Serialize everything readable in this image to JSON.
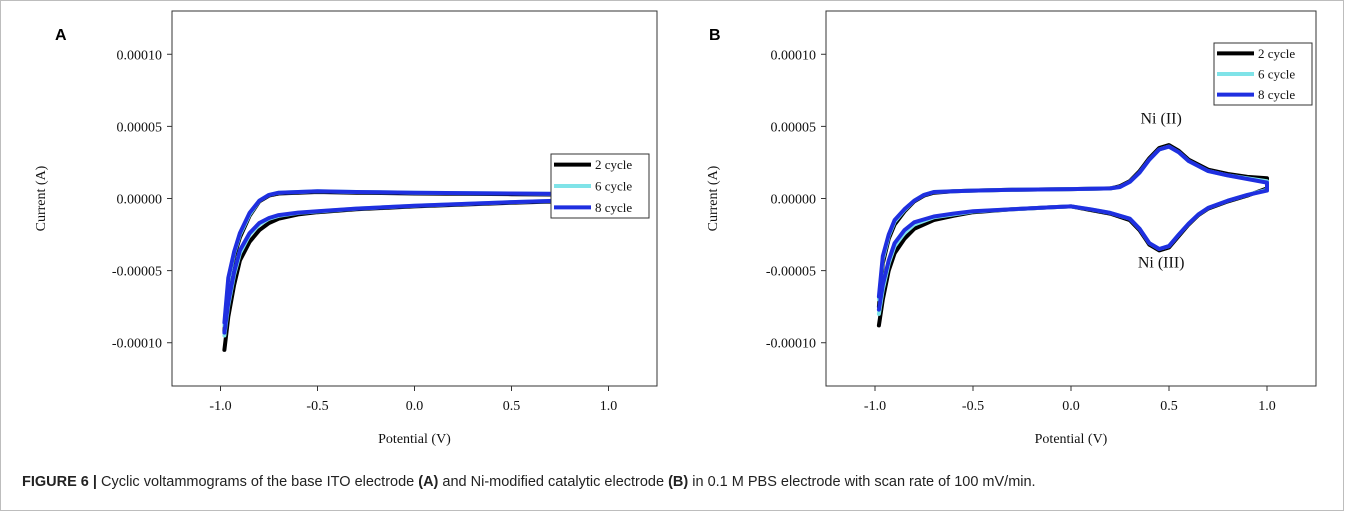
{
  "caption": {
    "prefix": "FIGURE 6 |",
    "t1": " Cyclic voltammograms of the base ITO electrode ",
    "a": "(A)",
    "t2": " and Ni-modified catalytic electrode ",
    "b": "(B)",
    "t3": " in 0.1 M PBS electrode with scan rate of 100 mV/min."
  },
  "chart_data": [
    {
      "panel": "A",
      "type": "line",
      "xlabel": "Potential (V)",
      "ylabel": "Current (A)",
      "xlim": [
        -1.25,
        1.25
      ],
      "ylim": [
        -0.00013,
        0.00013
      ],
      "xticks": [
        -1.0,
        -0.5,
        0.0,
        0.5,
        1.0
      ],
      "xtick_labels": [
        "-1.0",
        "-0.5",
        "0.0",
        "0.5",
        "1.0"
      ],
      "yticks": [
        0.0001,
        5e-05,
        0.0,
        -5e-05,
        -0.0001
      ],
      "ytick_labels": [
        "0.00010",
        "0.00005",
        "0.00000",
        "-0.00005",
        "-0.00010"
      ],
      "grid": false,
      "legend": "top-right",
      "series": [
        {
          "name": "2 cycle",
          "color": "#000000",
          "x": [
            -0.98,
            -0.96,
            -0.93,
            -0.9,
            -0.85,
            -0.8,
            -0.75,
            -0.7,
            -0.6,
            -0.5,
            -0.3,
            0.0,
            0.5,
            1.0,
            1.0,
            0.5,
            0.0,
            -0.3,
            -0.5,
            -0.6,
            -0.7,
            -0.75,
            -0.8,
            -0.85,
            -0.9,
            -0.93,
            -0.96,
            -0.98
          ],
          "y": [
            -0.000105,
            -8.2e-05,
            -6e-05,
            -4.3e-05,
            -3e-05,
            -2.2e-05,
            -1.7e-05,
            -1.4e-05,
            -1.1e-05,
            -9.5e-06,
            -7.5e-06,
            -5.5e-06,
            -3e-06,
            -1e-06,
            2.5e-06,
            3e-06,
            3.5e-06,
            4e-06,
            4.5e-06,
            4e-06,
            3.5e-06,
            2e-06,
            -2e-06,
            -1.2e-05,
            -2.7e-05,
            -4e-05,
            -6e-05,
            -9.2e-05
          ]
        },
        {
          "name": "6 cycle",
          "color": "#7fe3e8",
          "x": [
            -0.98,
            -0.96,
            -0.93,
            -0.9,
            -0.85,
            -0.8,
            -0.75,
            -0.7,
            -0.6,
            -0.5,
            -0.3,
            0.0,
            0.5,
            1.0,
            1.0,
            0.5,
            0.0,
            -0.3,
            -0.5,
            -0.6,
            -0.7,
            -0.75,
            -0.8,
            -0.85,
            -0.9,
            -0.93,
            -0.96,
            -0.98
          ],
          "y": [
            -9.5e-05,
            -7.4e-05,
            -5.3e-05,
            -3.8e-05,
            -2.5e-05,
            -1.8e-05,
            -1.4e-05,
            -1.2e-05,
            -1e-05,
            -9e-06,
            -7e-06,
            -5e-06,
            -2.5e-06,
            -5e-07,
            3e-06,
            3.5e-06,
            4e-06,
            4.5e-06,
            5e-06,
            4.5e-06,
            4e-06,
            2.5e-06,
            -1.5e-06,
            -1.1e-05,
            -2.5e-05,
            -3.8e-05,
            -5.7e-05,
            -8.8e-05
          ]
        },
        {
          "name": "8 cycle",
          "color": "#1f2fe0",
          "x": [
            -0.98,
            -0.96,
            -0.93,
            -0.9,
            -0.85,
            -0.8,
            -0.75,
            -0.7,
            -0.6,
            -0.5,
            -0.3,
            0.0,
            0.5,
            1.0,
            1.0,
            0.5,
            0.0,
            -0.3,
            -0.5,
            -0.6,
            -0.7,
            -0.75,
            -0.8,
            -0.85,
            -0.9,
            -0.93,
            -0.96,
            -0.98
          ],
          "y": [
            -9.3e-05,
            -7.2e-05,
            -5.1e-05,
            -3.6e-05,
            -2.4e-05,
            -1.7e-05,
            -1.35e-05,
            -1.15e-05,
            -9.8e-06,
            -8.8e-06,
            -7e-06,
            -5e-06,
            -2.5e-06,
            -5e-07,
            3e-06,
            3.5e-06,
            4e-06,
            4.5e-06,
            5e-06,
            4.5e-06,
            4e-06,
            2.5e-06,
            -1.5e-06,
            -1e-05,
            -2.4e-05,
            -3.7e-05,
            -5.5e-05,
            -8.6e-05
          ]
        }
      ],
      "annotations": []
    },
    {
      "panel": "B",
      "type": "line",
      "xlabel": "Potential (V)",
      "ylabel": "Current (A)",
      "xlim": [
        -1.25,
        1.25
      ],
      "ylim": [
        -0.00013,
        0.00013
      ],
      "xticks": [
        -1.0,
        -0.5,
        0.0,
        0.5,
        1.0
      ],
      "xtick_labels": [
        "-1.0",
        "-0.5",
        "0.0",
        "0.5",
        "1.0"
      ],
      "yticks": [
        0.0001,
        5e-05,
        0.0,
        -5e-05,
        -0.0001
      ],
      "ytick_labels": [
        "0.00010",
        "0.00005",
        "0.00000",
        "-0.00005",
        "-0.00010"
      ],
      "grid": false,
      "legend": "top-right",
      "series": [
        {
          "name": "2 cycle",
          "color": "#000000",
          "x": [
            -0.98,
            -0.96,
            -0.93,
            -0.9,
            -0.85,
            -0.8,
            -0.7,
            -0.6,
            -0.5,
            -0.3,
            -0.1,
            0.0,
            0.1,
            0.2,
            0.3,
            0.35,
            0.4,
            0.45,
            0.5,
            0.55,
            0.6,
            0.65,
            0.7,
            0.8,
            0.9,
            1.0,
            1.0,
            0.9,
            0.8,
            0.7,
            0.6,
            0.55,
            0.5,
            0.45,
            0.4,
            0.35,
            0.3,
            0.25,
            0.2,
            0.0,
            -0.3,
            -0.5,
            -0.6,
            -0.7,
            -0.75,
            -0.8,
            -0.85,
            -0.9,
            -0.93,
            -0.96,
            -0.98
          ],
          "y": [
            -8.8e-05,
            -7e-05,
            -5e-05,
            -3.8e-05,
            -2.8e-05,
            -2.1e-05,
            -1.5e-05,
            -1.2e-05,
            -9.5e-06,
            -7.5e-06,
            -6e-06,
            -5.5e-06,
            -8e-06,
            -1.05e-05,
            -1.5e-05,
            -2.2e-05,
            -3.2e-05,
            -3.6e-05,
            -3.4e-05,
            -2.6e-05,
            -1.8e-05,
            -1.15e-05,
            -7e-06,
            -2e-06,
            2e-06,
            7e-06,
            1.4e-05,
            1.5e-05,
            1.7e-05,
            2e-05,
            2.7e-05,
            3.3e-05,
            3.7e-05,
            3.5e-05,
            2.8e-05,
            1.9e-05,
            1.2e-05,
            8.5e-06,
            7e-06,
            6.5e-06,
            6e-06,
            5.5e-06,
            5e-06,
            4e-06,
            2e-06,
            -2e-06,
            -9e-06,
            -1.8e-05,
            -2.8e-05,
            -4.5e-05,
            -7.5e-05
          ]
        },
        {
          "name": "6 cycle",
          "color": "#7fe3e8",
          "x": [
            -0.98,
            -0.96,
            -0.93,
            -0.9,
            -0.85,
            -0.8,
            -0.7,
            -0.6,
            -0.5,
            -0.3,
            -0.1,
            0.0,
            0.1,
            0.2,
            0.3,
            0.35,
            0.4,
            0.45,
            0.5,
            0.55,
            0.6,
            0.65,
            0.7,
            0.8,
            0.9,
            1.0,
            1.0,
            0.9,
            0.8,
            0.7,
            0.6,
            0.55,
            0.5,
            0.45,
            0.4,
            0.35,
            0.3,
            0.25,
            0.2,
            0.0,
            -0.3,
            -0.5,
            -0.6,
            -0.7,
            -0.75,
            -0.8,
            -0.85,
            -0.9,
            -0.93,
            -0.96,
            -0.98
          ],
          "y": [
            -8e-05,
            -6.3e-05,
            -4.5e-05,
            -3.3e-05,
            -2.4e-05,
            -1.8e-05,
            -1.3e-05,
            -1.1e-05,
            -9e-06,
            -7.5e-06,
            -6e-06,
            -5.5e-06,
            -7.5e-06,
            -1e-05,
            -1.4e-05,
            -2.1e-05,
            -3.1e-05,
            -3.5e-05,
            -3.3e-05,
            -2.5e-05,
            -1.75e-05,
            -1.1e-05,
            -6.5e-06,
            -1.5e-06,
            2.5e-06,
            6e-06,
            1.2e-05,
            1.4e-05,
            1.6e-05,
            1.9e-05,
            2.6e-05,
            3.2e-05,
            3.6e-05,
            3.4e-05,
            2.7e-05,
            1.8e-05,
            1.15e-05,
            8e-06,
            7e-06,
            6.5e-06,
            6e-06,
            5.5e-06,
            5e-06,
            4.5e-06,
            2.5e-06,
            -1.5e-06,
            -8e-06,
            -1.6e-05,
            -2.6e-05,
            -4.2e-05,
            -7e-05
          ]
        },
        {
          "name": "8 cycle",
          "color": "#1f2fe0",
          "x": [
            -0.98,
            -0.96,
            -0.93,
            -0.9,
            -0.85,
            -0.8,
            -0.7,
            -0.6,
            -0.5,
            -0.3,
            -0.1,
            0.0,
            0.1,
            0.2,
            0.3,
            0.35,
            0.4,
            0.45,
            0.5,
            0.55,
            0.6,
            0.65,
            0.7,
            0.8,
            0.9,
            1.0,
            1.0,
            0.9,
            0.8,
            0.7,
            0.6,
            0.55,
            0.5,
            0.45,
            0.4,
            0.35,
            0.3,
            0.25,
            0.2,
            0.0,
            -0.3,
            -0.5,
            -0.6,
            -0.7,
            -0.75,
            -0.8,
            -0.85,
            -0.9,
            -0.93,
            -0.96,
            -0.98
          ],
          "y": [
            -7.7e-05,
            -6e-05,
            -4.3e-05,
            -3.1e-05,
            -2.2e-05,
            -1.65e-05,
            -1.25e-05,
            -1.05e-05,
            -8.8e-06,
            -7.4e-06,
            -6e-06,
            -5.5e-06,
            -7.5e-06,
            -1e-05,
            -1.4e-05,
            -2.1e-05,
            -3.1e-05,
            -3.5e-05,
            -3.3e-05,
            -2.5e-05,
            -1.75e-05,
            -1.1e-05,
            -6.5e-06,
            -1.5e-06,
            2.5e-06,
            5.5e-06,
            1.1e-05,
            1.35e-05,
            1.6e-05,
            1.9e-05,
            2.6e-05,
            3.2e-05,
            3.6e-05,
            3.4e-05,
            2.7e-05,
            1.8e-05,
            1.15e-05,
            8e-06,
            7e-06,
            6.5e-06,
            6e-06,
            5.5e-06,
            5e-06,
            4.5e-06,
            2.5e-06,
            -1.5e-06,
            -7.5e-06,
            -1.5e-05,
            -2.5e-05,
            -4e-05,
            -6.8e-05
          ]
        }
      ],
      "annotations": [
        {
          "text": "Ni (II)",
          "x": 0.46,
          "y": 5.2e-05
        },
        {
          "text": "Ni (III)",
          "x": 0.46,
          "y": -4.8e-05
        }
      ]
    }
  ]
}
